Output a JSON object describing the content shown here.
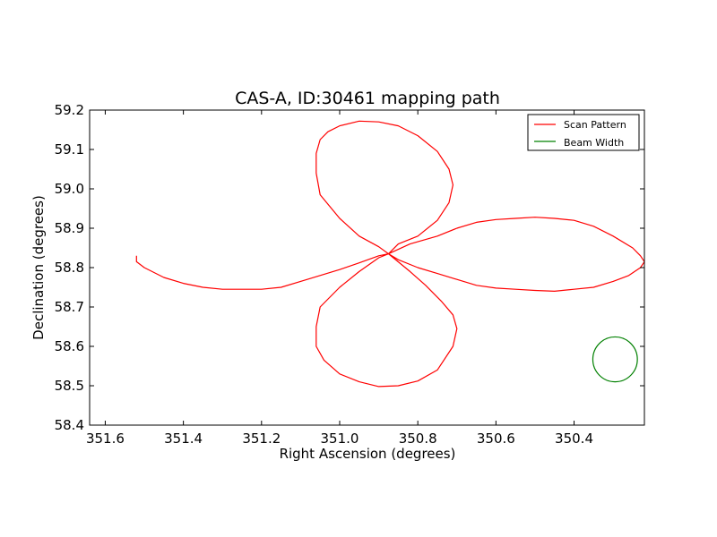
{
  "chart_data": {
    "type": "line",
    "title": "CAS-A, ID:30461 mapping path",
    "xlabel": "Right Ascension (degrees)",
    "ylabel": "Declination (degrees)",
    "xlim": [
      351.64,
      350.22
    ],
    "ylim": [
      58.4,
      59.2
    ],
    "x_ticks": [
      "351.6",
      "351.4",
      "351.2",
      "351.0",
      "350.8",
      "350.6",
      "350.4"
    ],
    "x_tick_values": [
      351.6,
      351.4,
      351.2,
      351.0,
      350.8,
      350.6,
      350.4
    ],
    "y_ticks": [
      "58.4",
      "58.5",
      "58.6",
      "58.7",
      "58.8",
      "58.9",
      "59.0",
      "59.1",
      "59.2"
    ],
    "y_tick_values": [
      58.4,
      58.5,
      58.6,
      58.7,
      58.8,
      58.9,
      59.0,
      59.1,
      59.2
    ],
    "grid": false,
    "legend_position": "top-right",
    "series": [
      {
        "name": "Scan Pattern",
        "color": "#ff0000",
        "x": [
          351.52,
          351.52,
          351.5,
          351.45,
          351.4,
          351.35,
          351.3,
          351.25,
          351.2,
          351.15,
          351.1,
          351.05,
          351.0,
          350.95,
          350.9,
          350.875,
          350.9,
          350.95,
          351.0,
          351.05,
          351.06,
          351.06,
          351.05,
          351.03,
          351.0,
          350.95,
          350.9,
          350.85,
          350.8,
          350.75,
          350.72,
          350.71,
          350.72,
          350.75,
          350.8,
          350.85,
          350.875,
          350.82,
          350.75,
          350.7,
          350.65,
          350.6,
          350.55,
          350.5,
          350.45,
          350.4,
          350.35,
          350.3,
          350.25,
          350.23,
          350.22,
          350.23,
          350.26,
          350.3,
          350.35,
          350.4,
          350.45,
          350.5,
          350.55,
          350.6,
          350.65,
          350.7,
          350.75,
          350.8,
          350.85,
          350.875,
          350.82,
          350.78,
          350.74,
          350.71,
          350.7,
          350.71,
          350.75,
          350.8,
          350.85,
          350.9,
          350.95,
          351.0,
          351.04,
          351.06,
          351.06,
          351.05,
          351.0,
          350.95,
          350.9,
          350.875
        ],
        "y": [
          58.83,
          58.815,
          58.8,
          58.775,
          58.76,
          58.75,
          58.745,
          58.745,
          58.745,
          58.75,
          58.765,
          58.78,
          58.795,
          58.812,
          58.83,
          58.835,
          58.853,
          58.88,
          58.925,
          58.985,
          59.04,
          59.09,
          59.125,
          59.145,
          59.16,
          59.172,
          59.17,
          59.16,
          59.135,
          59.095,
          59.05,
          59.01,
          58.965,
          58.92,
          58.88,
          58.86,
          58.835,
          58.86,
          58.88,
          58.9,
          58.915,
          58.922,
          58.925,
          58.928,
          58.925,
          58.92,
          58.905,
          58.88,
          58.85,
          58.83,
          58.815,
          58.8,
          58.78,
          58.765,
          58.75,
          58.745,
          58.74,
          58.742,
          58.745,
          58.748,
          58.755,
          58.77,
          58.785,
          58.8,
          58.82,
          58.835,
          58.79,
          58.755,
          58.715,
          58.68,
          58.645,
          58.6,
          58.54,
          58.512,
          58.5,
          58.498,
          58.51,
          58.53,
          58.565,
          58.6,
          58.65,
          58.7,
          58.75,
          58.79,
          58.825,
          58.835
        ]
      },
      {
        "name": "Beam Width",
        "color": "#008000",
        "shape": "circle",
        "center": [
          350.295,
          58.567
        ],
        "radius": 0.057
      }
    ]
  }
}
